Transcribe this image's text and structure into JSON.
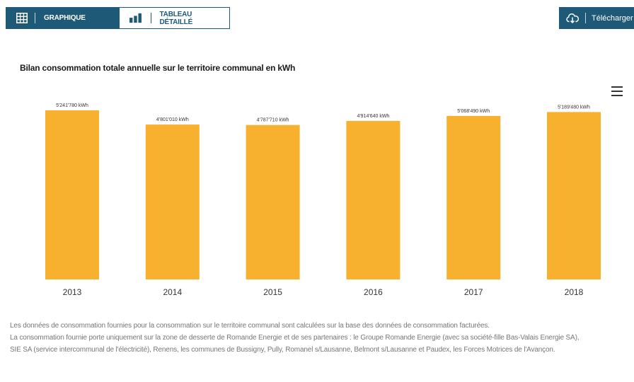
{
  "toolbar": {
    "graph_tab_label": "GRAPHIQUE",
    "table_tab_label": "TABLEAU DÉTAILLÉ",
    "download_label": "Télécharger"
  },
  "colors": {
    "primary": "#1e5a78",
    "bar": "#f7b12e"
  },
  "icons": {
    "graph_tab": "grid-icon",
    "table_tab": "bar-chart-icon",
    "download": "cloud-download-icon",
    "menu": "hamburger-menu-icon"
  },
  "chart_data": {
    "type": "bar",
    "title": "Bilan consommation totale annuelle sur le territoire communal en kWh",
    "xlabel": "",
    "ylabel": "",
    "categories": [
      "2013",
      "2014",
      "2015",
      "2016",
      "2017",
      "2018"
    ],
    "values": [
      5241780,
      4801010,
      4787710,
      4914640,
      5068490,
      5189480
    ],
    "data_labels": [
      "5'241'780 kWh",
      "4'801'010 kWh",
      "4'787'710 kWh",
      "4'914'640 kWh",
      "5'068'490 kWh",
      "5'189'480 kWh"
    ],
    "ylim": [
      0,
      5241780
    ],
    "grid": false,
    "legend": "none"
  },
  "footnote": {
    "line1": "Les données de consommation fournies pour la consommation sur le territoire communal sont calculées sur la base des données de consommation facturées.",
    "line2": "La consommation fournie porte uniquement sur la zone de desserte de Romande Energie et de ses partenaires : le Groupe Romande Energie (avec sa société-fille Bas-Valais Energie SA),",
    "line3": "SIE SA (service intercommunal de l'électricité), Renens, les communes de Bussigny, Pully, Romanel s/Lausanne, Belmont s/Lausanne et Paudex, les Forces Motrices de l'Avançon."
  }
}
